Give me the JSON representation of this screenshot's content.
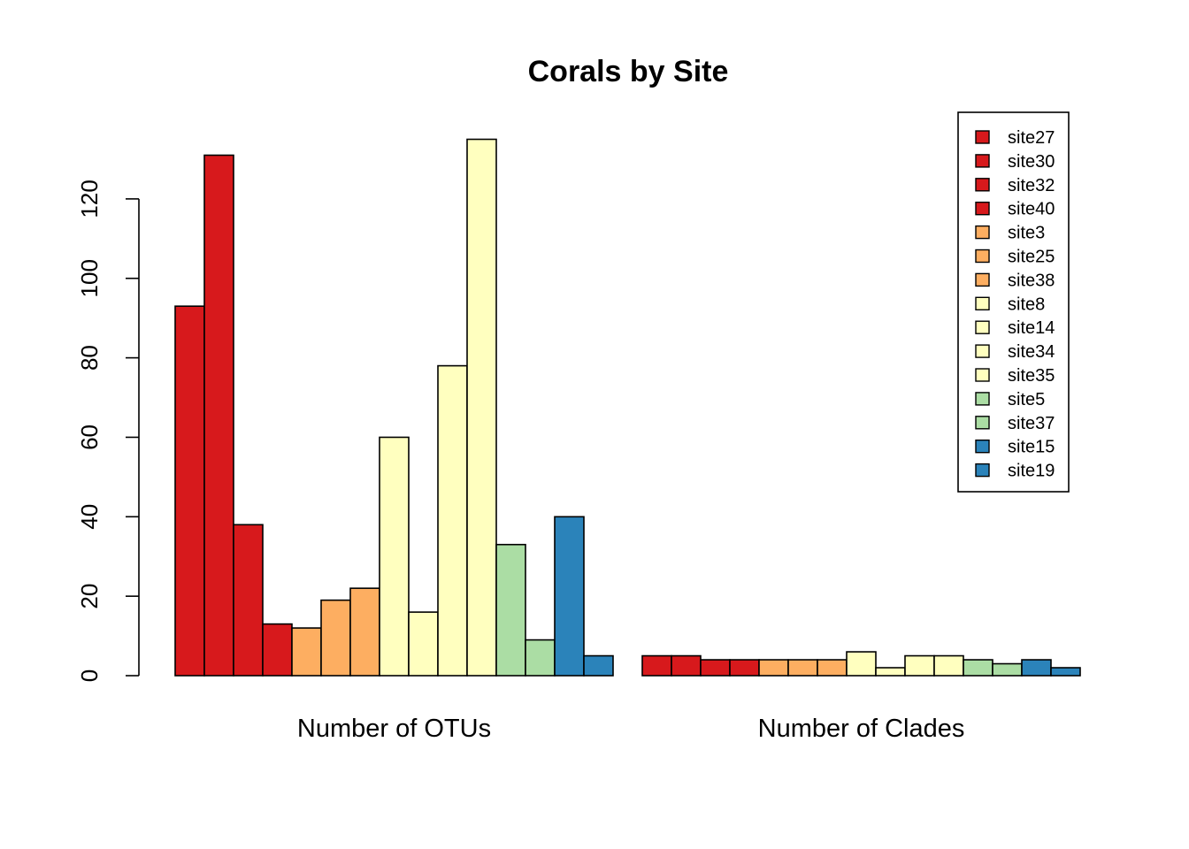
{
  "chart_data": {
    "type": "bar",
    "title": "Corals by Site",
    "xlabel": "",
    "ylabel": "",
    "ylim": [
      0,
      135
    ],
    "yticks": [
      0,
      20,
      40,
      60,
      80,
      100,
      120
    ],
    "categories": [
      "Number of OTUs",
      "Number of Clades"
    ],
    "grid": false,
    "legend_position": "top-right",
    "series": [
      {
        "name": "site27",
        "color": "#d7191c",
        "values": [
          93,
          5
        ]
      },
      {
        "name": "site30",
        "color": "#d7191c",
        "values": [
          131,
          5
        ]
      },
      {
        "name": "site32",
        "color": "#d7191c",
        "values": [
          38,
          4
        ]
      },
      {
        "name": "site40",
        "color": "#d7191c",
        "values": [
          13,
          4
        ]
      },
      {
        "name": "site3",
        "color": "#fdae61",
        "values": [
          12,
          4
        ]
      },
      {
        "name": "site25",
        "color": "#fdae61",
        "values": [
          19,
          4
        ]
      },
      {
        "name": "site38",
        "color": "#fdae61",
        "values": [
          22,
          4
        ]
      },
      {
        "name": "site8",
        "color": "#ffffbf",
        "values": [
          60,
          6
        ]
      },
      {
        "name": "site14",
        "color": "#ffffbf",
        "values": [
          16,
          2
        ]
      },
      {
        "name": "site34",
        "color": "#ffffbf",
        "values": [
          78,
          5
        ]
      },
      {
        "name": "site35",
        "color": "#ffffbf",
        "values": [
          135,
          5
        ]
      },
      {
        "name": "site5",
        "color": "#abdda4",
        "values": [
          33,
          4
        ]
      },
      {
        "name": "site37",
        "color": "#abdda4",
        "values": [
          9,
          3
        ]
      },
      {
        "name": "site15",
        "color": "#2b83ba",
        "values": [
          40,
          4
        ]
      },
      {
        "name": "site19",
        "color": "#2b83ba",
        "values": [
          5,
          2
        ]
      }
    ]
  }
}
